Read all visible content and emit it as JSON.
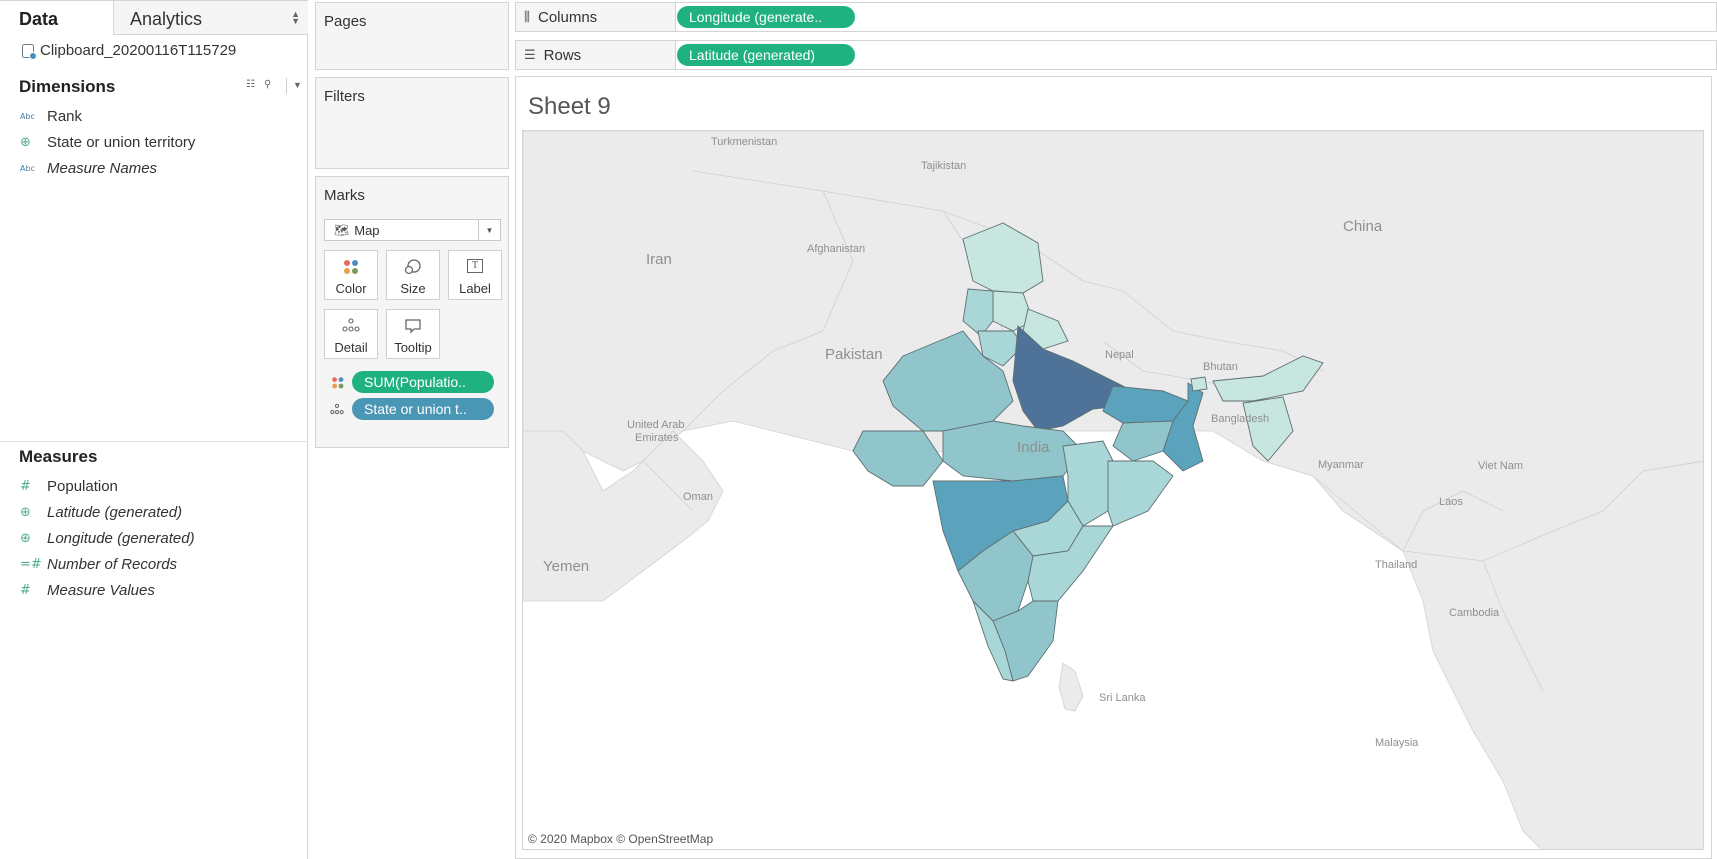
{
  "data_pane": {
    "tab_data": "Data",
    "tab_analytics": "Analytics",
    "datasource": "Clipboard_20200116T115729",
    "dimensions_header": "Dimensions",
    "dimensions": [
      {
        "icon": "Abc",
        "label": "Rank",
        "italic": false
      },
      {
        "icon": "globe",
        "label": "State or union territory",
        "italic": false
      },
      {
        "icon": "Abc",
        "label": "Measure Names",
        "italic": true
      }
    ],
    "measures_header": "Measures",
    "measures": [
      {
        "icon": "#",
        "label": "Population",
        "italic": false
      },
      {
        "icon": "globe",
        "label": "Latitude (generated)",
        "italic": true
      },
      {
        "icon": "=#",
        "label": "Longitude (generated)",
        "italic": true
      },
      {
        "icon": "#",
        "label": "Number of Records",
        "italic": true
      },
      {
        "icon": "#",
        "label": "Measure Values",
        "italic": true
      }
    ]
  },
  "shelves": {
    "pages": "Pages",
    "filters": "Filters",
    "marks": "Marks",
    "mark_type": "Map",
    "mark_buttons": {
      "color": "Color",
      "size": "Size",
      "label": "Label",
      "detail": "Detail",
      "tooltip": "Tooltip"
    },
    "mark_pills": [
      "SUM(Populatio..",
      "State or union t.."
    ],
    "columns_label": "Columns",
    "columns_pill": "Longitude (generate..",
    "rows_label": "Rows",
    "rows_pill": "Latitude (generated)"
  },
  "sheet": {
    "title": "Sheet 9",
    "credit": "© 2020 Mapbox © OpenStreetMap",
    "country_labels": [
      "Turkmenistan",
      "Tajikistan",
      "China",
      "Iran",
      "Afghanistan",
      "Pakistan",
      "Nepal",
      "Bhutan",
      "United Arab Emirates",
      "Bangladesh",
      "India",
      "Myanmar",
      "Viet Nam",
      "Oman",
      "Laos",
      "Yemen",
      "Thailand",
      "Cambodia",
      "Sri Lanka",
      "Malaysia"
    ],
    "colors": {
      "low": "#c6e6df",
      "mid": "#8fc5cb",
      "high": "#5ba3bd",
      "max": "#4f7298"
    }
  }
}
